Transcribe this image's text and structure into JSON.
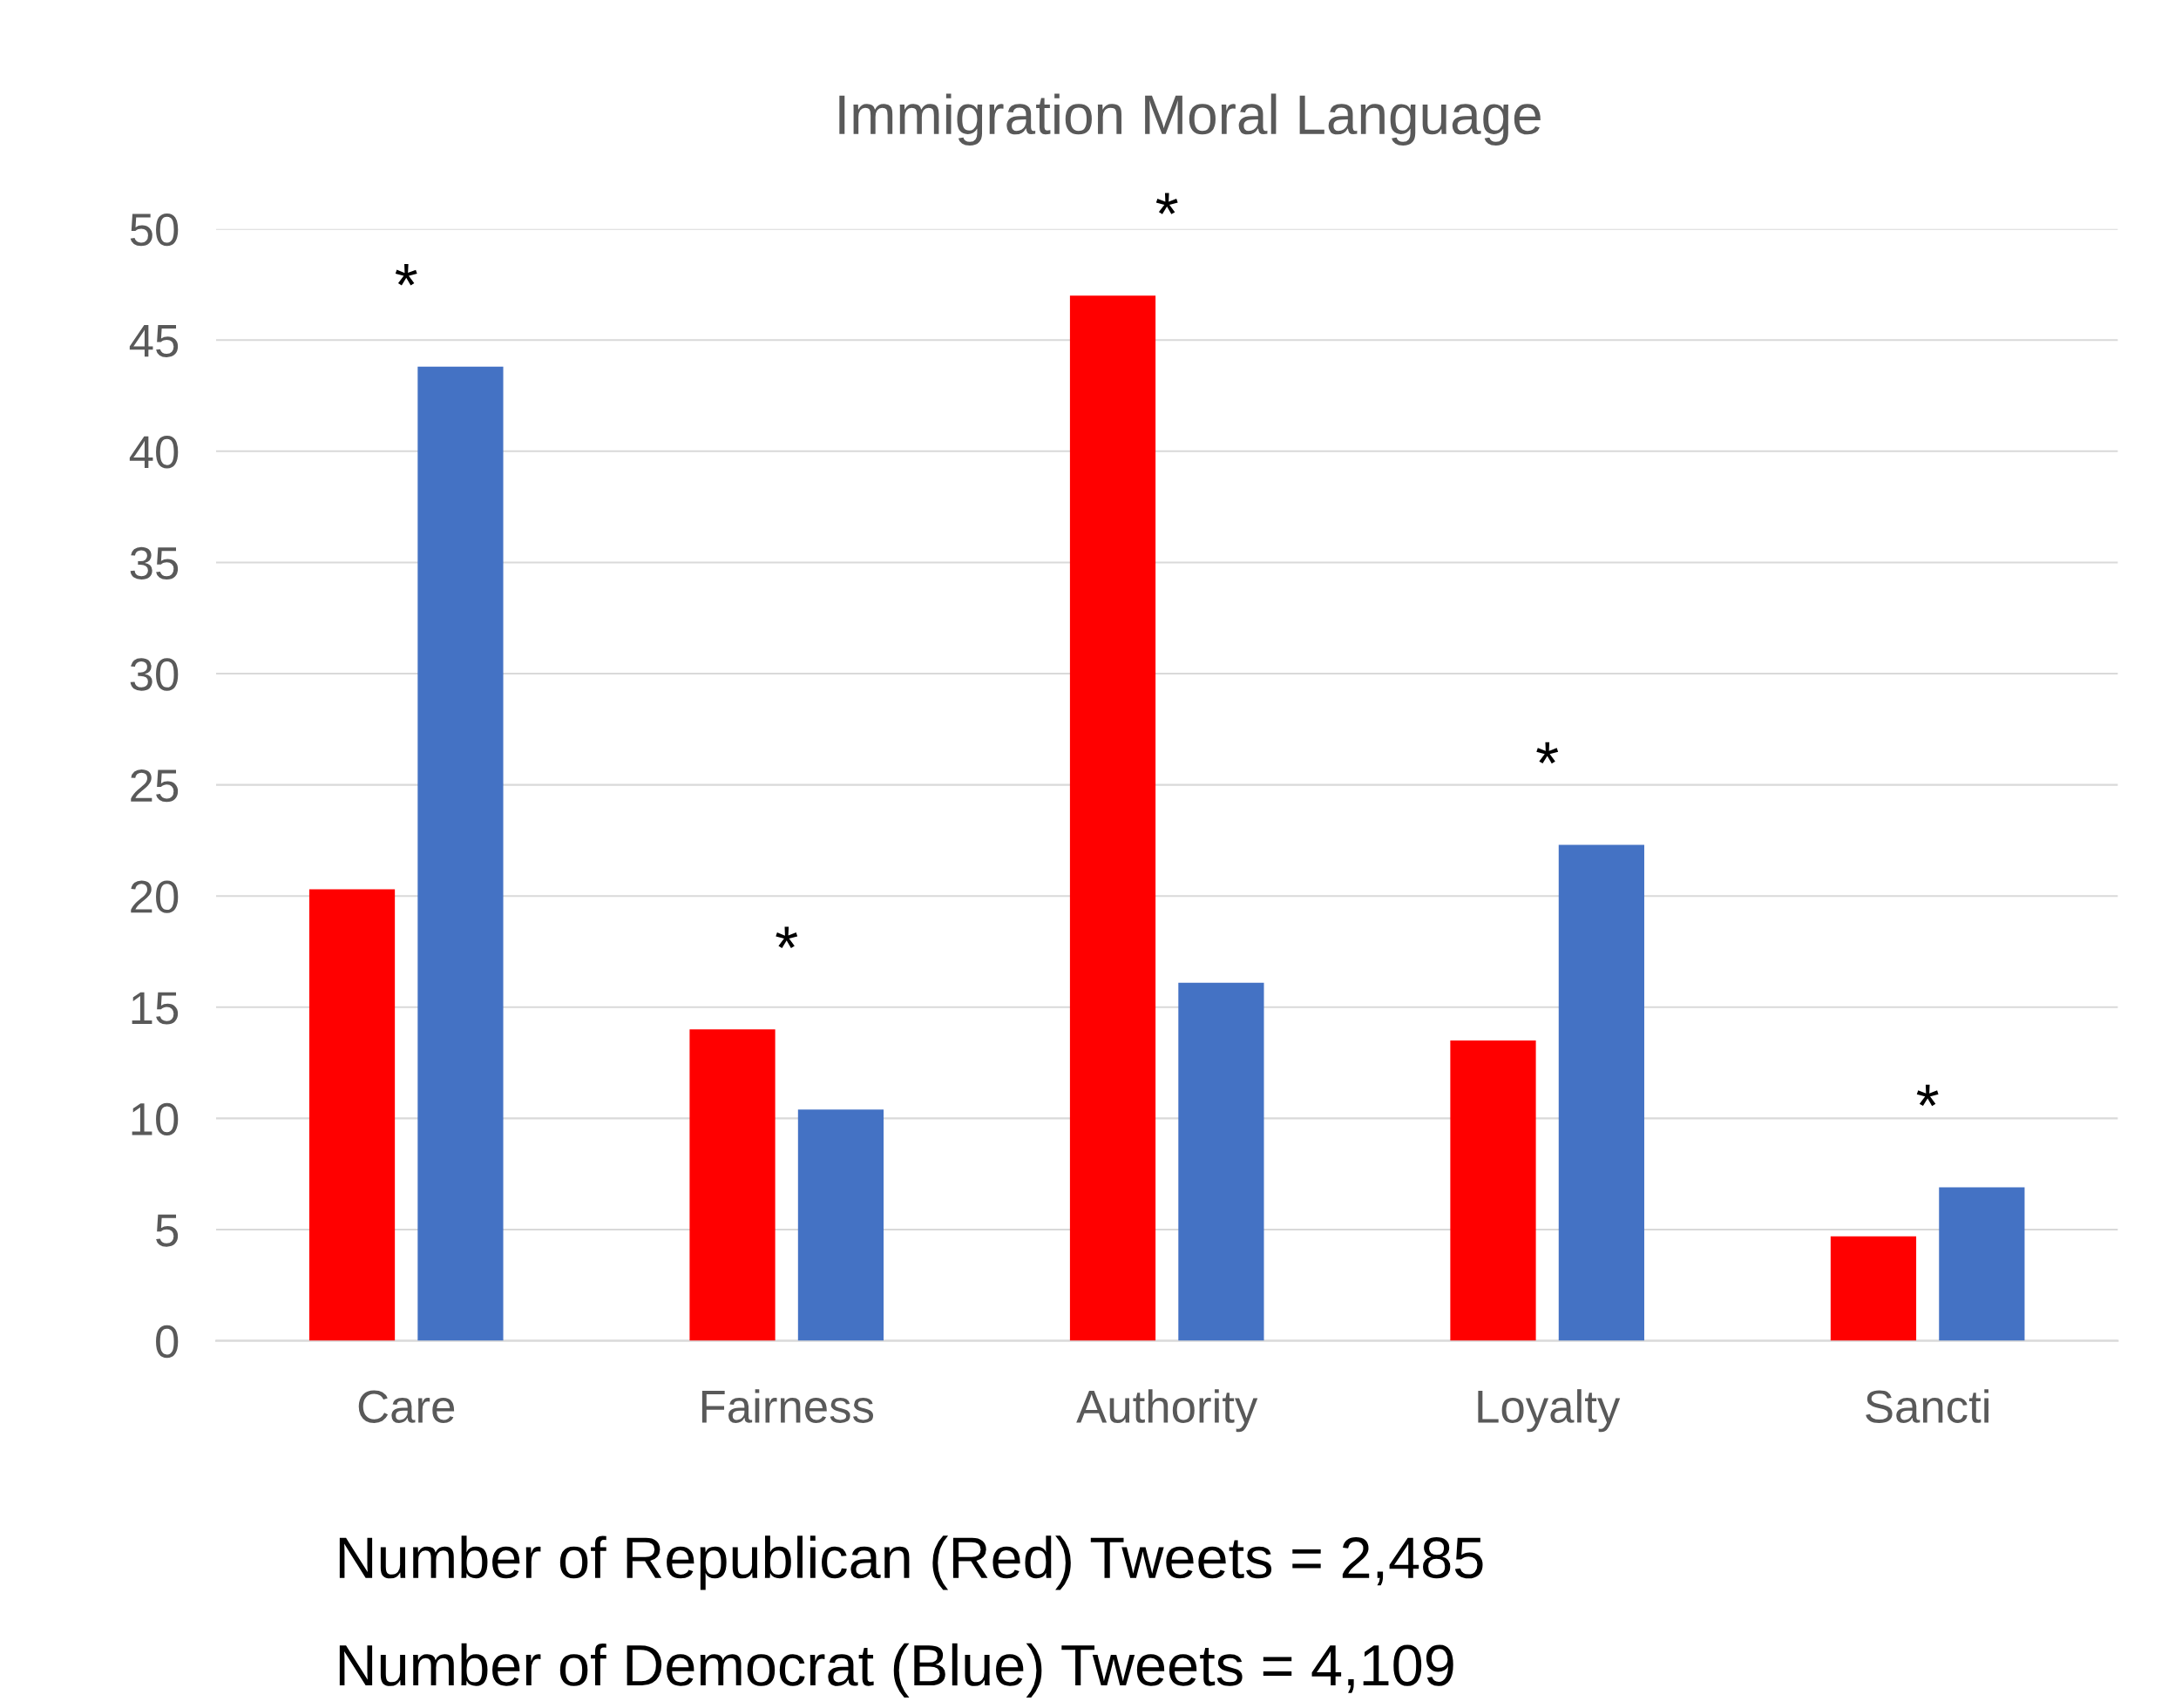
{
  "chart_data": {
    "type": "bar",
    "title": "Immigration Moral Language",
    "categories": [
      "Care",
      "Fairness",
      "Authority",
      "Loyalty",
      "Sancti"
    ],
    "series": [
      {
        "color": "#ff0000",
        "values": [
          20.3,
          14.0,
          47.0,
          13.5,
          4.7
        ]
      },
      {
        "color": "#4472c4",
        "values": [
          43.8,
          10.4,
          16.1,
          22.3,
          6.9
        ]
      }
    ],
    "ylim": [
      0,
      50
    ],
    "yticks": [
      0,
      5,
      10,
      15,
      20,
      25,
      30,
      35,
      40,
      45,
      50
    ],
    "grid": "y",
    "legend": false,
    "annotations": [
      "*",
      "*",
      "*",
      "*",
      "*",
      "Number of Republican (Red) Tweets = 2,485",
      "Number of Democrat (Blue) Tweets = 4,109"
    ]
  }
}
